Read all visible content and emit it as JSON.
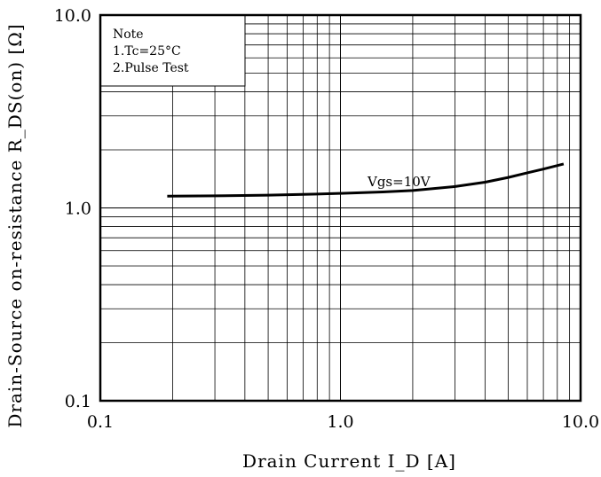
{
  "chart_data": {
    "type": "line",
    "x_scale": "log",
    "y_scale": "log",
    "xlim": [
      0.1,
      10.0
    ],
    "ylim": [
      0.1,
      10.0
    ],
    "grid": true,
    "x_ticks": [
      "0.1",
      "1.0",
      "10.0"
    ],
    "y_ticks": [
      "0.1",
      "1.0",
      "10.0"
    ],
    "xlabel": "Drain Current I_D [A]",
    "ylabel": "Drain-Source on-resistance R_DS(on) [Ω]",
    "note": {
      "title": "Note",
      "lines": [
        "1.Tc=25°C",
        "2.Pulse Test"
      ]
    },
    "series": [
      {
        "name": "Vgs=10V",
        "x": [
          0.19,
          0.3,
          0.5,
          0.8,
          1.0,
          1.5,
          2.0,
          3.0,
          4.0,
          5.0,
          6.0,
          7.0,
          8.5
        ],
        "y": [
          1.15,
          1.155,
          1.165,
          1.18,
          1.19,
          1.21,
          1.23,
          1.29,
          1.36,
          1.44,
          1.52,
          1.59,
          1.69
        ]
      }
    ]
  }
}
